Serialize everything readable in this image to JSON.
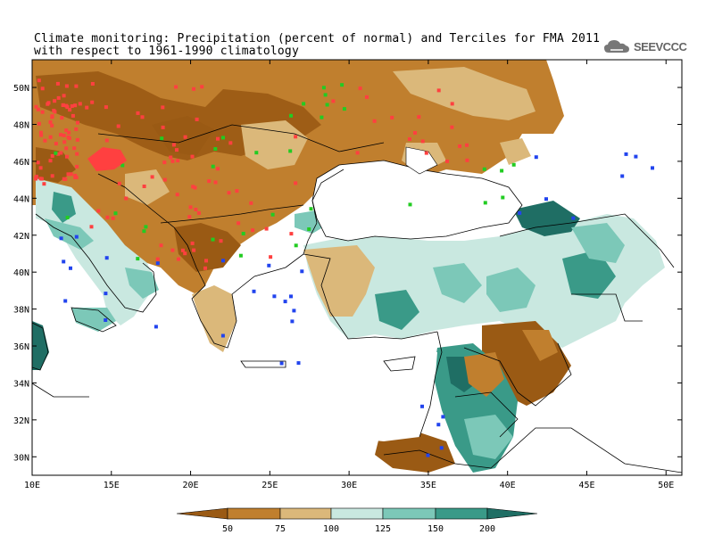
{
  "title": {
    "line1": "Climate monitoring: Precipitation (percent of normal) and Terciles for FMA 2011",
    "line2": "with respect to 1961-1990 climatology"
  },
  "logo": {
    "text": "SEEVCCC",
    "icon": "cloud-icon"
  },
  "map": {
    "lon_range": [
      10,
      51
    ],
    "lat_range": [
      29,
      51.5
    ],
    "x_ticks": [
      "10E",
      "15E",
      "20E",
      "25E",
      "30E",
      "35E",
      "40E",
      "45E",
      "50E"
    ],
    "x_tick_values": [
      10,
      15,
      20,
      25,
      30,
      35,
      40,
      45,
      50
    ],
    "y_ticks": [
      "30N",
      "32N",
      "34N",
      "36N",
      "38N",
      "40N",
      "42N",
      "44N",
      "46N",
      "48N",
      "50N"
    ],
    "y_tick_values": [
      30,
      32,
      34,
      36,
      38,
      40,
      42,
      44,
      46,
      48,
      50
    ]
  },
  "legend": {
    "labels": [
      "50",
      "75",
      "100",
      "125",
      "150",
      "200"
    ],
    "colors": [
      "#9a5a14",
      "#c07f2e",
      "#dbb87a",
      "#c9e8e0",
      "#7cc8b8",
      "#3a9a88",
      "#1f6e64"
    ]
  },
  "colors": {
    "dry_strong": "#9a5a14",
    "dry": "#c07f2e",
    "dry_light": "#dbb87a",
    "wet_light": "#c9e8e0",
    "wet": "#7cc8b8",
    "wet_strong": "#3a9a88",
    "tercile_below": "#ff4040",
    "tercile_normal": "#22cc22",
    "tercile_above": "#2244ee"
  }
}
